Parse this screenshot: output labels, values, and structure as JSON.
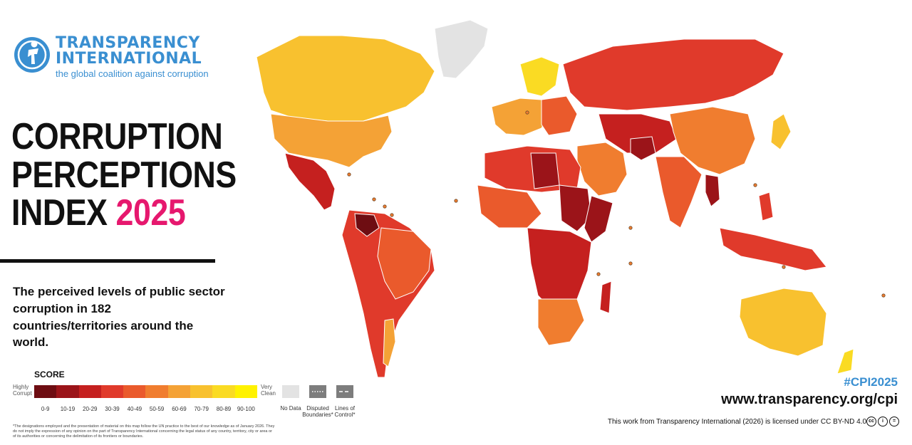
{
  "logo": {
    "icon": "person-globe-icon",
    "line1": "TRANSPARENCY",
    "line2": "INTERNATIONAL",
    "tagline": "the global coalition against corruption",
    "color": "#3a8fd1"
  },
  "title": {
    "line1": "CORRUPTION",
    "line2": "PERCEPTIONS",
    "line3_prefix": "INDEX ",
    "year": "2025",
    "year_color": "#e6186e"
  },
  "subtitle": "The perceived levels of public sector corruption in 182 countries/territories around the world.",
  "legend": {
    "title": "SCORE",
    "low_label_1": "Highly",
    "low_label_2": "Corrupt",
    "high_label_1": "Very",
    "high_label_2": "Clean",
    "bins": [
      "0-9",
      "10-19",
      "20-29",
      "30-39",
      "40-49",
      "50-59",
      "60-69",
      "70-79",
      "80-89",
      "90-100"
    ],
    "bin_colors": [
      "#6e0d12",
      "#9b1419",
      "#c5201f",
      "#e03a2b",
      "#ea5a2c",
      "#f07d2f",
      "#f4a236",
      "#f8c12f",
      "#fadb23",
      "#fff200"
    ],
    "no_data": "No Data",
    "no_data_color": "#e3e3e3",
    "disputed_1": "Disputed",
    "disputed_2": "Boundaries*",
    "lines_1": "Lines of",
    "lines_2": "Control*",
    "boundary_color": "#7d7d7d"
  },
  "footnote": "*The designations employed and the presentation of material on this map follow the UN practice to the best of our knowledge as of January 2026. They do not imply the expression of any opinion on the part of Transparency International concerning the legal status of any country, territory, city or area or of its authorities or concerning the delimitation of its frontiers or boundaries.",
  "hashtag": "#CPI2025",
  "website": "www.transparency.org/cpi",
  "license": "This work from Transparency International (2026) is licensed under CC BY-ND 4.0",
  "cc_icons": [
    "cc-icon",
    "by-icon",
    "nd-icon"
  ]
}
